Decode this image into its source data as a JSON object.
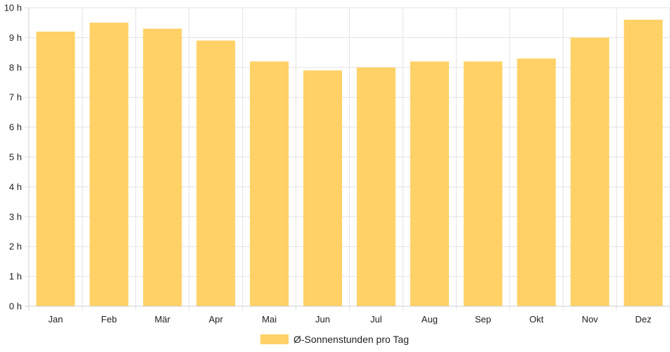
{
  "chart_data": {
    "type": "bar",
    "categories": [
      "Jan",
      "Feb",
      "Mär",
      "Apr",
      "Mai",
      "Jun",
      "Jul",
      "Aug",
      "Sep",
      "Okt",
      "Nov",
      "Dez"
    ],
    "series": [
      {
        "name": "Ø-Sonnenstunden pro Tag",
        "values": [
          9.2,
          9.5,
          9.3,
          8.9,
          8.2,
          7.9,
          8.0,
          8.2,
          8.2,
          8.3,
          9.0,
          9.6
        ],
        "color": "#FFD166"
      }
    ],
    "ylim": [
      0,
      10
    ],
    "yticks": [
      "0 h",
      "1 h",
      "2 h",
      "3 h",
      "4 h",
      "5 h",
      "6 h",
      "7 h",
      "8 h",
      "9 h",
      "10 h"
    ],
    "grid": true,
    "legend_position": "bottom-center"
  }
}
